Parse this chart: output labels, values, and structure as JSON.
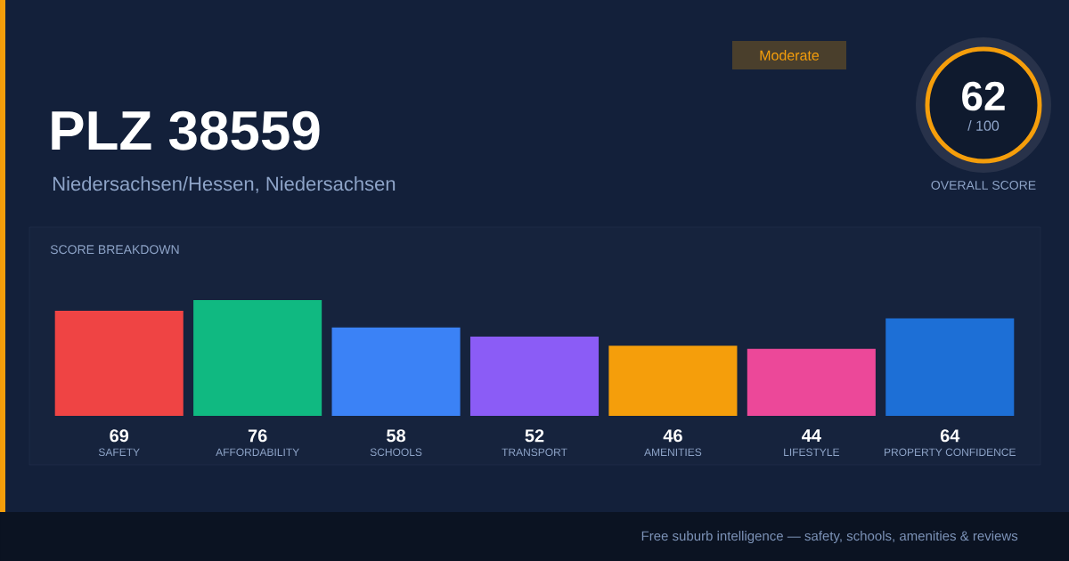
{
  "chart_data": {
    "type": "bar",
    "title": "PLZ 38559",
    "subtitle": "Niedersachsen/Hessen, Niedersachsen",
    "categories": [
      "SAFETY",
      "AFFORDABILITY",
      "SCHOOLS",
      "TRANSPORT",
      "AMENITIES",
      "LIFESTYLE",
      "PROPERTY CONFIDENCE"
    ],
    "values": [
      69,
      76,
      58,
      52,
      46,
      44,
      64
    ],
    "colors": [
      "#ef4444",
      "#10b981",
      "#3b82f6",
      "#8b5cf6",
      "#f59e0b",
      "#ec4899",
      "#1d6fd6"
    ],
    "data_labels": true,
    "annotations": [
      "SCORE BREAKDOWN",
      "Moderate",
      "62",
      "/ 100",
      "OVERALL SCORE",
      "Free suburb intelligence — safety, schools, amenities & reviews"
    ]
  }
}
